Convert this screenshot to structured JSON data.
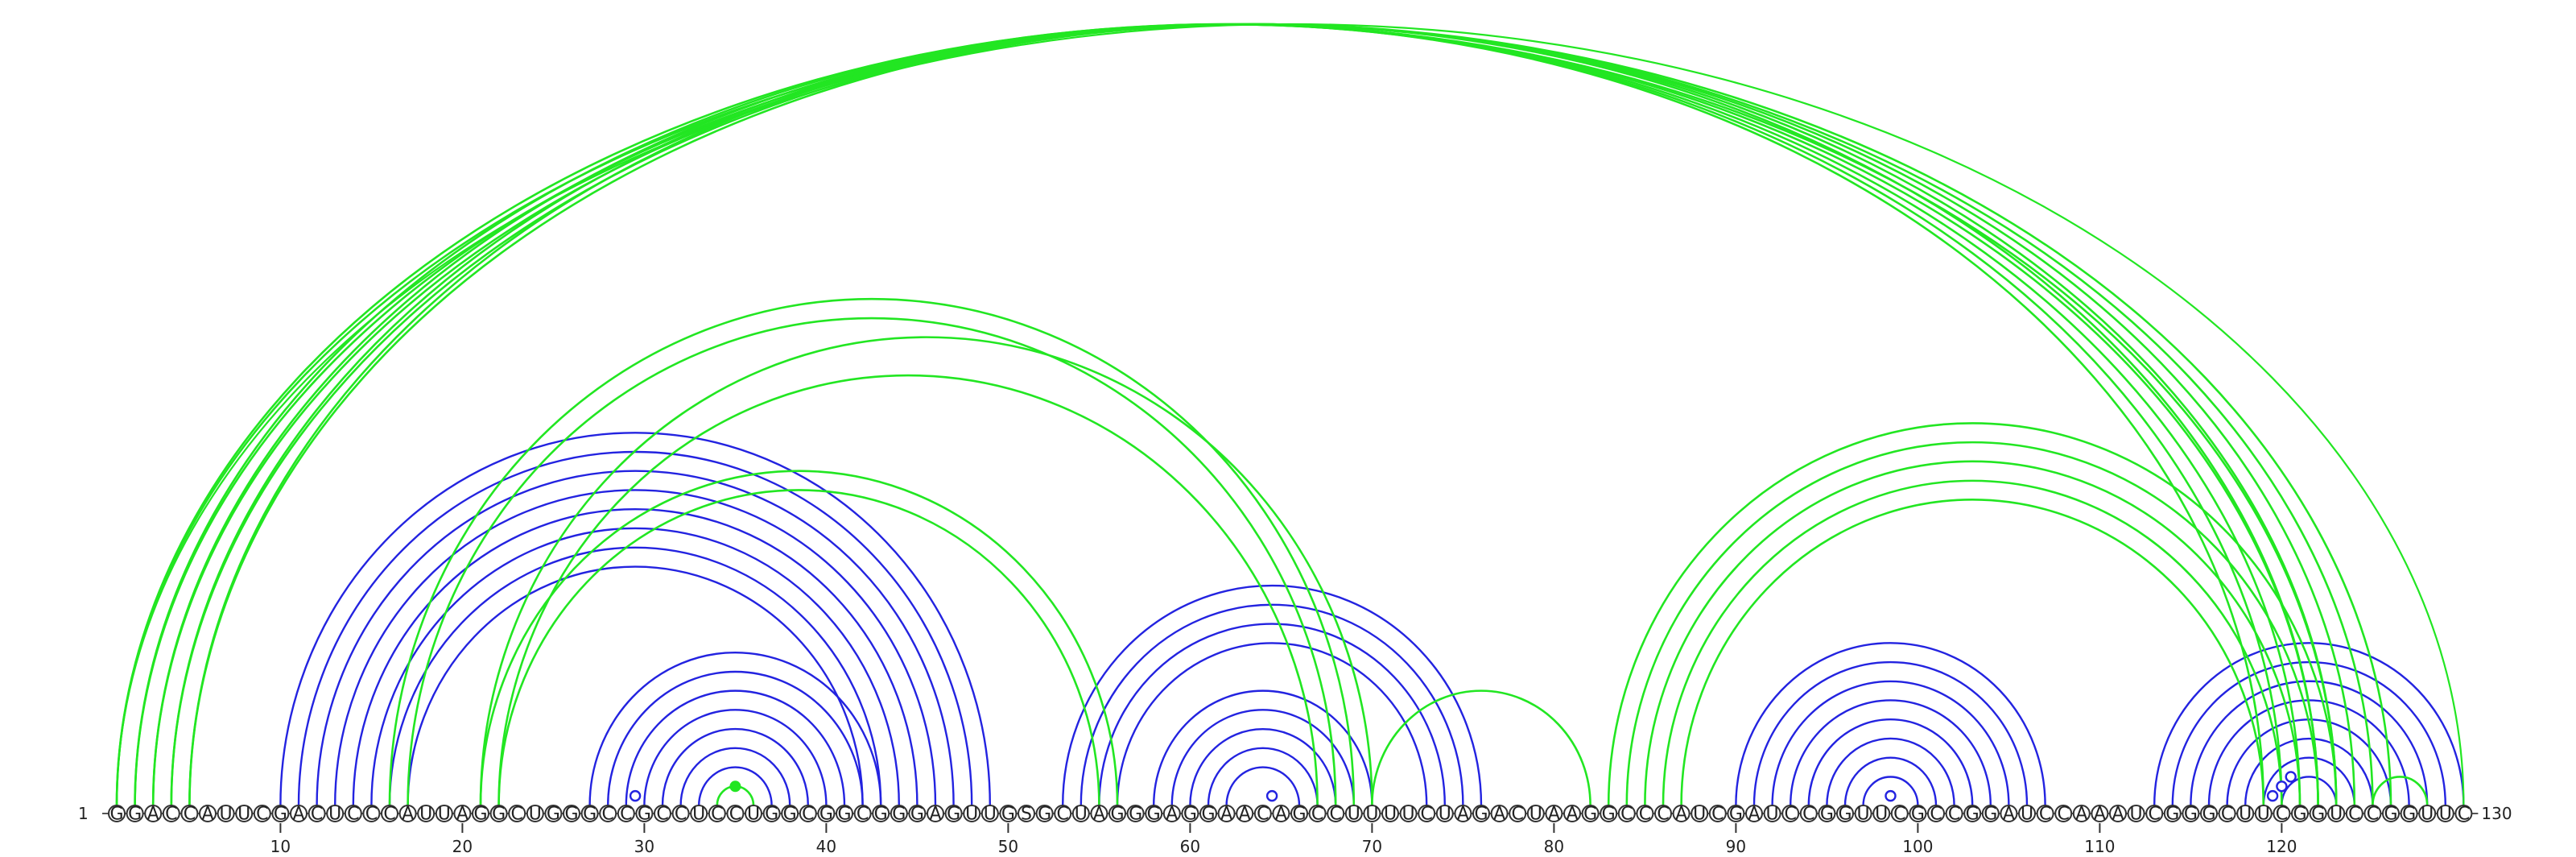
{
  "chart_data": {
    "type": "arc-diagram",
    "sequence": "GGACCAUUCGACUCCCAUUAGGCUGGGCCGCCUCCUGGCGGCGGGAGUUGSGCUAGGGAGGAACAGCCUUUUCUAGACUAAGGCCCAUCGAUCCGGUUCGCCGGAUCCAAAUCGGGCUUCGGUCCGGUUC",
    "start_label": "1",
    "end_label": "130",
    "ticks": [
      "10",
      "20",
      "30",
      "40",
      "50",
      "60",
      "70",
      "80",
      "90",
      "100",
      "110",
      "120"
    ],
    "colors": {
      "structure_a": "#2323e0",
      "structure_b": "#22e622"
    },
    "blue_pairs": [
      [
        10,
        49
      ],
      [
        11,
        48
      ],
      [
        12,
        47
      ],
      [
        13,
        46
      ],
      [
        14,
        45
      ],
      [
        15,
        44
      ],
      [
        16,
        43
      ],
      [
        17,
        42
      ],
      [
        27,
        43
      ],
      [
        28,
        42
      ],
      [
        29,
        41
      ],
      [
        30,
        40
      ],
      [
        31,
        39
      ],
      [
        32,
        38
      ],
      [
        33,
        37
      ],
      [
        53,
        76
      ],
      [
        54,
        75
      ],
      [
        55,
        74
      ],
      [
        56,
        73
      ],
      [
        58,
        70
      ],
      [
        59,
        69
      ],
      [
        60,
        68
      ],
      [
        61,
        67
      ],
      [
        62,
        66
      ],
      [
        90,
        107
      ],
      [
        91,
        106
      ],
      [
        92,
        105
      ],
      [
        93,
        104
      ],
      [
        94,
        103
      ],
      [
        95,
        102
      ],
      [
        96,
        101
      ],
      [
        97,
        100
      ],
      [
        113,
        130
      ],
      [
        114,
        129
      ],
      [
        115,
        128
      ],
      [
        116,
        127
      ],
      [
        117,
        126
      ],
      [
        118,
        125
      ],
      [
        119,
        124
      ],
      [
        120,
        123
      ]
    ],
    "green_pairs": [
      [
        1,
        123
      ],
      [
        2,
        122
      ],
      [
        3,
        121
      ],
      [
        4,
        120
      ],
      [
        5,
        119
      ],
      [
        16,
        69
      ],
      [
        17,
        68
      ],
      [
        21,
        70
      ],
      [
        22,
        67
      ],
      [
        34,
        36
      ],
      [
        70,
        82
      ],
      [
        83,
        123
      ],
      [
        84,
        122
      ],
      [
        85,
        121
      ],
      [
        86,
        120
      ],
      [
        87,
        119
      ],
      [
        125,
        128
      ]
    ],
    "double_green": [
      [
        1,
        126
      ],
      [
        2,
        125
      ],
      [
        3,
        124
      ],
      [
        4,
        123
      ],
      [
        5,
        122
      ],
      [
        21,
        56
      ],
      [
        22,
        55
      ]
    ],
    "green_outer": [
      [
        1,
        131
      ]
    ],
    "blue_markers": [
      [
        29,
        30
      ],
      [
        64,
        65
      ],
      [
        98,
        99
      ],
      [
        119,
        120
      ],
      [
        119,
        121
      ],
      [
        119,
        122
      ]
    ],
    "green_markers": [
      [
        34,
        36
      ]
    ]
  }
}
